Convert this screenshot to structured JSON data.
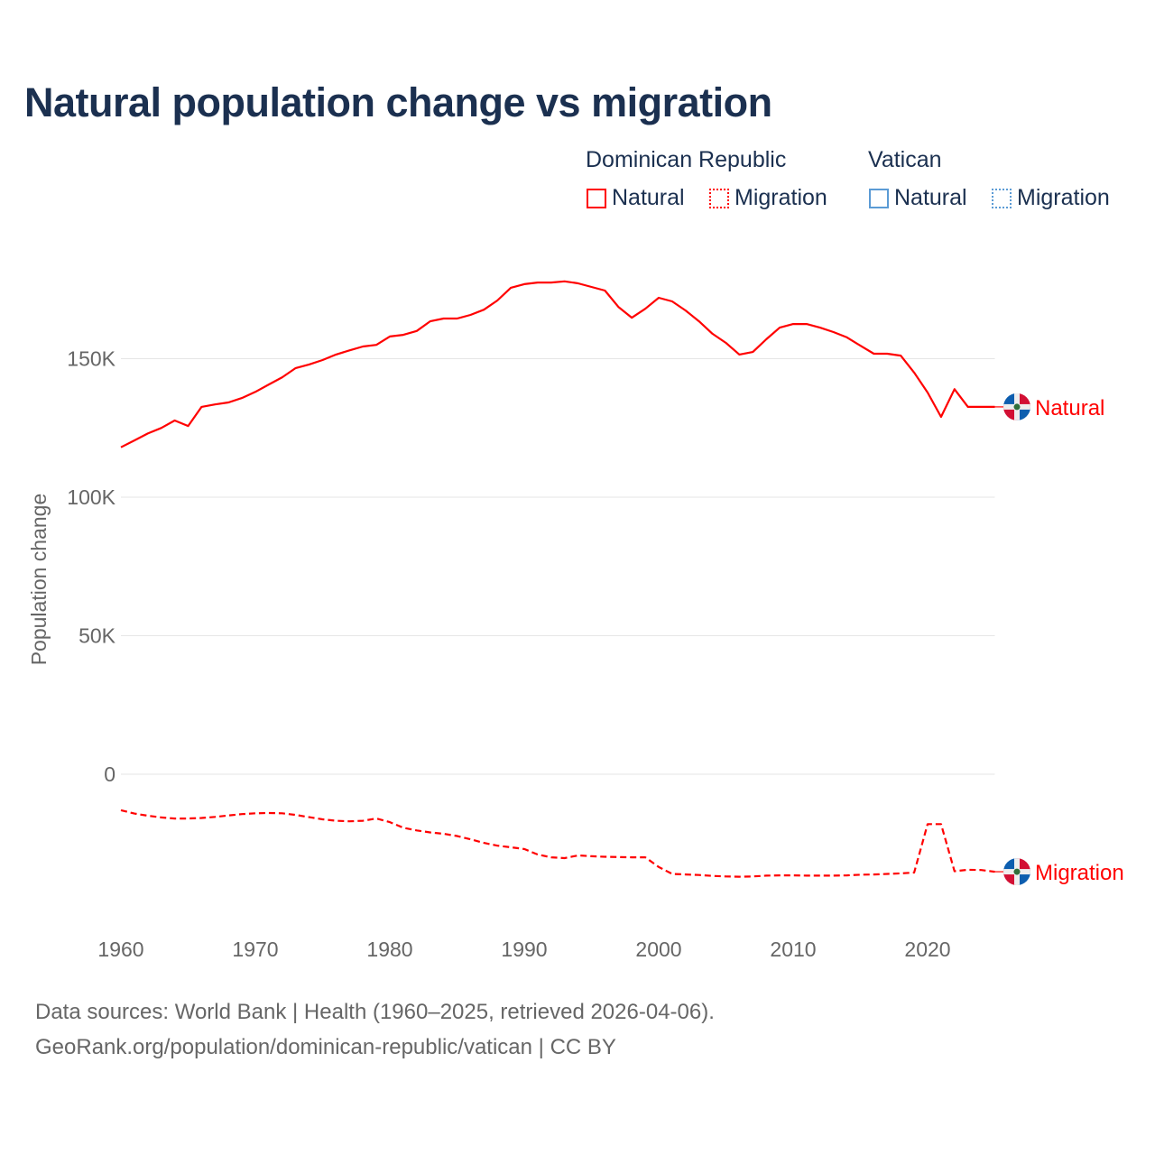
{
  "chart_data": {
    "type": "line",
    "title": "Natural population change vs migration",
    "ylabel": "Population change",
    "xlabel": "",
    "ylim": [
      -50000,
      185000
    ],
    "xlim": [
      1960,
      2025
    ],
    "yticks": [
      {
        "v": 0,
        "label": "0"
      },
      {
        "v": 50000,
        "label": "50K"
      },
      {
        "v": 100000,
        "label": "100K"
      },
      {
        "v": 150000,
        "label": "150K"
      }
    ],
    "xticks": [
      1960,
      1970,
      1980,
      1990,
      2000,
      2010,
      2020
    ],
    "grid": true,
    "legend_groups": [
      {
        "name": "Dominican Republic",
        "color": "#ff0000",
        "items": [
          "Natural",
          "Migration"
        ]
      },
      {
        "name": "Vatican",
        "color": "#5b9bd5",
        "items": [
          "Natural",
          "Migration"
        ]
      }
    ],
    "x": [
      1960,
      1961,
      1962,
      1963,
      1964,
      1965,
      1966,
      1967,
      1968,
      1969,
      1970,
      1971,
      1972,
      1973,
      1974,
      1975,
      1976,
      1977,
      1978,
      1979,
      1980,
      1981,
      1982,
      1983,
      1984,
      1985,
      1986,
      1987,
      1988,
      1989,
      1990,
      1991,
      1992,
      1993,
      1994,
      1995,
      1996,
      1997,
      1998,
      1999,
      2000,
      2001,
      2002,
      2003,
      2004,
      2005,
      2006,
      2007,
      2008,
      2009,
      2010,
      2011,
      2012,
      2013,
      2014,
      2015,
      2016,
      2017,
      2018,
      2019,
      2020,
      2021,
      2022,
      2023,
      2024,
      2025
    ],
    "series": [
      {
        "name": "Natural",
        "country": "Dominican Republic",
        "color": "#ff0000",
        "dash": false,
        "end_label": "Natural",
        "values": [
          118000,
          120500,
          123000,
          125000,
          127700,
          125700,
          132600,
          133500,
          134200,
          135800,
          138000,
          140700,
          143300,
          146600,
          147900,
          149500,
          151500,
          153000,
          154400,
          155000,
          158000,
          158600,
          160000,
          163500,
          164500,
          164500,
          165800,
          167700,
          171000,
          175600,
          176900,
          177500,
          177500,
          177900,
          177200,
          175900,
          174600,
          168700,
          164800,
          168000,
          172000,
          170700,
          167400,
          163500,
          159000,
          155700,
          151500,
          152400,
          157000,
          161200,
          162500,
          162500,
          161200,
          159600,
          157700,
          154700,
          151800,
          151800,
          151100,
          145000,
          137800,
          129000,
          139000,
          132600,
          132600,
          132600
        ]
      },
      {
        "name": "Migration",
        "country": "Dominican Republic",
        "color": "#ff0000",
        "dash": true,
        "end_label": "Migration",
        "values": [
          -13000,
          -14200,
          -15000,
          -15600,
          -16000,
          -16000,
          -15800,
          -15400,
          -14900,
          -14400,
          -14100,
          -14000,
          -14100,
          -14700,
          -15500,
          -16300,
          -16800,
          -17000,
          -16800,
          -16000,
          -17300,
          -19300,
          -20300,
          -21000,
          -21500,
          -22300,
          -23500,
          -24800,
          -25800,
          -26400,
          -27000,
          -29000,
          -30000,
          -30300,
          -29300,
          -29600,
          -29800,
          -29900,
          -30000,
          -30000,
          -33500,
          -36000,
          -36200,
          -36400,
          -36700,
          -36900,
          -37000,
          -36900,
          -36600,
          -36500,
          -36500,
          -36600,
          -36600,
          -36600,
          -36500,
          -36300,
          -36200,
          -36000,
          -35800,
          -35500,
          -18000,
          -18000,
          -35000,
          -34500,
          -34600,
          -35200
        ]
      }
    ]
  },
  "footer": {
    "line1": "Data sources: World Bank | Health (1960–2025, retrieved 2026-04-06).",
    "line2": "GeoRank.org/population/dominican-republic/vatican | CC BY"
  }
}
